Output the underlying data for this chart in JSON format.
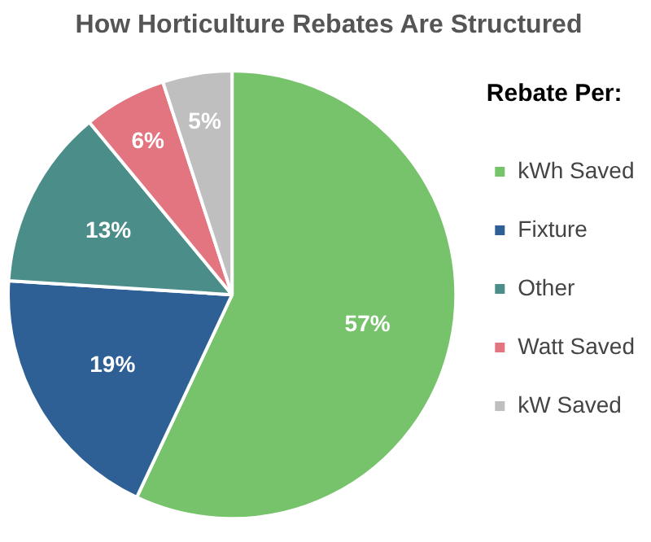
{
  "chart_data": {
    "type": "pie",
    "title": "How Horticulture Rebates Are Structured",
    "legend_title": "Rebate Per:",
    "legend": "right",
    "value_labels": [
      "57%",
      "19%",
      "13%",
      "6%",
      "5%"
    ],
    "categories": [
      "kWh Saved",
      "Fixture",
      "Other",
      "Watt Saved",
      "kW Saved"
    ],
    "values": [
      57,
      19,
      13,
      6,
      5
    ],
    "colors": [
      "#77c36b",
      "#2e6096",
      "#4b8d88",
      "#e2757f",
      "#bfbfbf"
    ]
  }
}
